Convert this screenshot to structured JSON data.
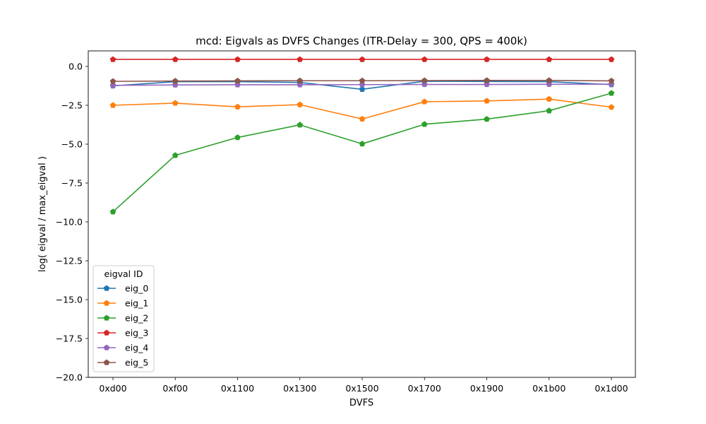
{
  "chart_data": {
    "type": "line",
    "title": "mcd: Eigvals as DVFS Changes (ITR-Delay = 300, QPS = 400k)",
    "xlabel": "DVFS",
    "ylabel": "log( eigval / max_eigval )",
    "categories": [
      "0xd00",
      "0xf00",
      "0x1100",
      "0x1300",
      "0x1500",
      "0x1700",
      "0x1900",
      "0x1b00",
      "0x1d00"
    ],
    "ylim": [
      -20,
      1
    ],
    "yticks": [
      0.0,
      -2.5,
      -5.0,
      -7.5,
      -10.0,
      -12.5,
      -15.0,
      -17.5,
      -20.0
    ],
    "ytick_labels": [
      "0.0",
      "−2.5",
      "−5.0",
      "−7.5",
      "−10.0",
      "−12.5",
      "−15.0",
      "−17.5",
      "−20.0"
    ],
    "grid": false,
    "marker": "pentagon",
    "legend": {
      "title": "eigval ID",
      "placement": "lower-left"
    },
    "series": [
      {
        "name": "eig_0",
        "color": "#1f77b4",
        "values": [
          -1.25,
          -0.98,
          -0.98,
          -1.03,
          -1.47,
          -0.95,
          -0.97,
          -0.98,
          -1.17
        ]
      },
      {
        "name": "eig_1",
        "color": "#ff7f0e",
        "values": [
          -2.5,
          -2.36,
          -2.6,
          -2.46,
          -3.38,
          -2.27,
          -2.22,
          -2.1,
          -2.62
        ]
      },
      {
        "name": "eig_2",
        "color": "#2ca02c",
        "values": [
          -9.35,
          -5.72,
          -4.57,
          -3.76,
          -4.98,
          -3.72,
          -3.39,
          -2.85,
          -1.72
        ]
      },
      {
        "name": "eig_3",
        "color": "#d62728",
        "values": [
          0.45,
          0.45,
          0.45,
          0.45,
          0.45,
          0.45,
          0.45,
          0.45,
          0.45
        ]
      },
      {
        "name": "eig_4",
        "color": "#9467bd",
        "values": [
          -1.22,
          -1.19,
          -1.18,
          -1.18,
          -1.17,
          -1.16,
          -1.16,
          -1.15,
          -1.14
        ]
      },
      {
        "name": "eig_5",
        "color": "#8c564b",
        "values": [
          -0.96,
          -0.94,
          -0.93,
          -0.92,
          -0.92,
          -0.91,
          -0.9,
          -0.9,
          -0.93
        ]
      }
    ]
  }
}
